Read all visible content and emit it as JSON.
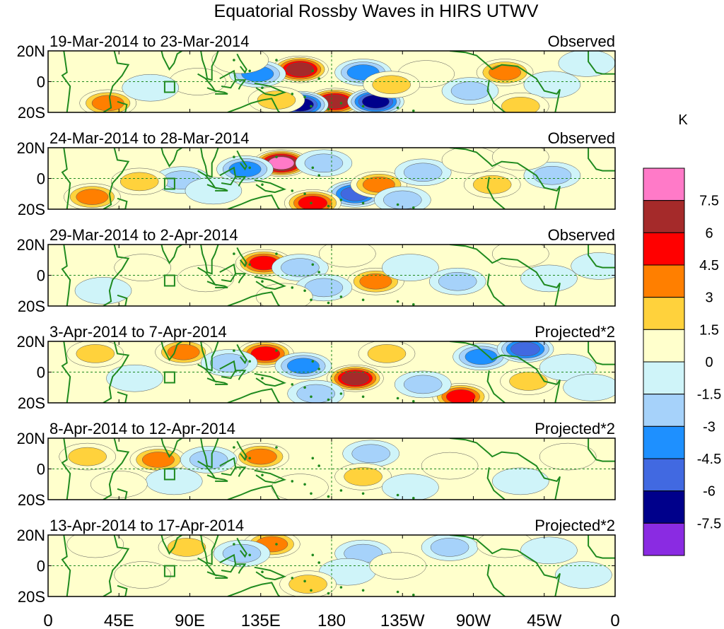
{
  "chart_data": {
    "type": "heatmap",
    "title": "Equatorial Rossby Waves in HIRS UTWV",
    "units": "K",
    "y_ticks": [
      "20N",
      "0",
      "20S"
    ],
    "x_ticks": [
      "0",
      "45E",
      "90E",
      "135E",
      "180",
      "135W",
      "90W",
      "45W",
      "0"
    ],
    "longitude_range": [
      0,
      360
    ],
    "latitude_range": [
      -20,
      20
    ],
    "colorbar": {
      "labels": [
        "7.5",
        "6",
        "4.5",
        "3",
        "1.5",
        "0",
        "-1.5",
        "-3",
        "-4.5",
        "-6",
        "-7.5"
      ],
      "colors": [
        "#ff7ac8",
        "#a52a2a",
        "#ff0000",
        "#ff7f00",
        "#ffd23c",
        "#ffffcc",
        "#cff4f9",
        "#a6d2fa",
        "#1e90ff",
        "#4169e1",
        "#00008b",
        "#8a2be2"
      ]
    },
    "panels": [
      {
        "date_range": "19-Mar-2014 to 23-Mar-2014",
        "status": "Observed",
        "anomalies": [
          {
            "lon": 160,
            "lat": 8,
            "value": 7.5
          },
          {
            "lon": 200,
            "lat": 6,
            "value": -4.5
          },
          {
            "lon": 133,
            "lat": 5,
            "value": -4
          },
          {
            "lon": 240,
            "lat": 5,
            "value": 1.5
          },
          {
            "lon": 290,
            "lat": 6,
            "value": 4.5
          },
          {
            "lon": 182,
            "lat": -13,
            "value": 7
          },
          {
            "lon": 208,
            "lat": -13,
            "value": -6.5
          },
          {
            "lon": 160,
            "lat": -15,
            "value": -6.5
          },
          {
            "lon": 218,
            "lat": -2,
            "value": 2.5
          },
          {
            "lon": 38,
            "lat": -14,
            "value": 3.5
          },
          {
            "lon": 145,
            "lat": -12,
            "value": 3
          },
          {
            "lon": 95,
            "lat": 0,
            "value": 1.5
          },
          {
            "lon": 65,
            "lat": -4,
            "value": -1.5
          },
          {
            "lon": 268,
            "lat": -6,
            "value": -2
          },
          {
            "lon": 320,
            "lat": -2,
            "value": -1.5
          },
          {
            "lon": 342,
            "lat": 12,
            "value": -1.5
          },
          {
            "lon": 300,
            "lat": -16,
            "value": 3
          },
          {
            "lon": 122,
            "lat": 14,
            "value": 1.5
          }
        ]
      },
      {
        "date_range": "24-Mar-2014 to 28-Mar-2014",
        "status": "Observed",
        "anomalies": [
          {
            "lon": 148,
            "lat": 10,
            "value": 8
          },
          {
            "lon": 125,
            "lat": 6,
            "value": -3.5
          },
          {
            "lon": 175,
            "lat": 10,
            "value": -3
          },
          {
            "lon": 195,
            "lat": -10,
            "value": -6
          },
          {
            "lon": 168,
            "lat": -16,
            "value": 5
          },
          {
            "lon": 210,
            "lat": -4,
            "value": 3.5
          },
          {
            "lon": 238,
            "lat": 4,
            "value": -2
          },
          {
            "lon": 28,
            "lat": -12,
            "value": 4
          },
          {
            "lon": 85,
            "lat": -1,
            "value": -2
          },
          {
            "lon": 58,
            "lat": -2,
            "value": 2
          },
          {
            "lon": 282,
            "lat": -4,
            "value": 2
          },
          {
            "lon": 320,
            "lat": 2,
            "value": -2
          },
          {
            "lon": 268,
            "lat": 12,
            "value": 1.5
          },
          {
            "lon": 300,
            "lat": 14,
            "value": 1.5
          },
          {
            "lon": 105,
            "lat": -8,
            "value": -1.5
          },
          {
            "lon": 225,
            "lat": -14,
            "value": -2
          }
        ]
      },
      {
        "date_range": "29-Mar-2014 to 2-Apr-2014",
        "status": "Observed",
        "anomalies": [
          {
            "lon": 137,
            "lat": 8,
            "value": 5
          },
          {
            "lon": 208,
            "lat": -4,
            "value": 4
          },
          {
            "lon": 160,
            "lat": 5,
            "value": -2
          },
          {
            "lon": 175,
            "lat": -8,
            "value": -2.5
          },
          {
            "lon": 230,
            "lat": 5,
            "value": -1.5
          },
          {
            "lon": 150,
            "lat": -14,
            "value": 1.5
          },
          {
            "lon": 35,
            "lat": -10,
            "value": -1.5
          },
          {
            "lon": 100,
            "lat": -2,
            "value": 1.5
          },
          {
            "lon": 260,
            "lat": -4,
            "value": -2
          },
          {
            "lon": 318,
            "lat": -2,
            "value": -1.5
          },
          {
            "lon": 300,
            "lat": 14,
            "value": 1.5
          },
          {
            "lon": 190,
            "lat": 14,
            "value": 1.5
          },
          {
            "lon": 350,
            "lat": 6,
            "value": -1.5
          },
          {
            "lon": 60,
            "lat": 5,
            "value": 1.5
          }
        ]
      },
      {
        "date_range": "3-Apr-2014 to 7-Apr-2014",
        "status": "Projected*2",
        "anomalies": [
          {
            "lon": 138,
            "lat": 12,
            "value": 5.5
          },
          {
            "lon": 86,
            "lat": 13,
            "value": 3.5
          },
          {
            "lon": 195,
            "lat": -4,
            "value": 6.5
          },
          {
            "lon": 162,
            "lat": 4,
            "value": -3.5
          },
          {
            "lon": 115,
            "lat": 6,
            "value": -3
          },
          {
            "lon": 275,
            "lat": 10,
            "value": -4.5
          },
          {
            "lon": 303,
            "lat": 15,
            "value": -6
          },
          {
            "lon": 262,
            "lat": -16,
            "value": 5
          },
          {
            "lon": 238,
            "lat": -8,
            "value": -3
          },
          {
            "lon": 215,
            "lat": 12,
            "value": 2.5
          },
          {
            "lon": 30,
            "lat": 12,
            "value": 3
          },
          {
            "lon": 55,
            "lat": -4,
            "value": -1.5
          },
          {
            "lon": 305,
            "lat": -6,
            "value": 2.5
          },
          {
            "lon": 330,
            "lat": 3,
            "value": -1.5
          },
          {
            "lon": 345,
            "lat": -10,
            "value": -1.5
          },
          {
            "lon": 170,
            "lat": -14,
            "value": -2
          }
        ]
      },
      {
        "date_range": "8-Apr-2014 to 12-Apr-2014",
        "status": "Projected*2",
        "anomalies": [
          {
            "lon": 70,
            "lat": 6,
            "value": 3.5
          },
          {
            "lon": 135,
            "lat": 8,
            "value": 3.5
          },
          {
            "lon": 205,
            "lat": 10,
            "value": -3
          },
          {
            "lon": 200,
            "lat": -5,
            "value": 2.5
          },
          {
            "lon": 102,
            "lat": 6,
            "value": -2.5
          },
          {
            "lon": 25,
            "lat": 8,
            "value": 2
          },
          {
            "lon": 80,
            "lat": -8,
            "value": -1.5
          },
          {
            "lon": 45,
            "lat": -10,
            "value": 1.5
          },
          {
            "lon": 255,
            "lat": 2,
            "value": 1.5
          },
          {
            "lon": 300,
            "lat": -8,
            "value": -1.5
          },
          {
            "lon": 330,
            "lat": 8,
            "value": 1.5
          },
          {
            "lon": 230,
            "lat": -12,
            "value": -1.5
          },
          {
            "lon": 160,
            "lat": -12,
            "value": 1.5
          }
        ]
      },
      {
        "date_range": "13-Apr-2014 to 17-Apr-2014",
        "status": "Projected*2",
        "anomalies": [
          {
            "lon": 142,
            "lat": 14,
            "value": 4.5
          },
          {
            "lon": 123,
            "lat": 8,
            "value": -2.5
          },
          {
            "lon": 200,
            "lat": 8,
            "value": -2
          },
          {
            "lon": 190,
            "lat": -4,
            "value": -1.5
          },
          {
            "lon": 222,
            "lat": 0,
            "value": 1.5
          },
          {
            "lon": 88,
            "lat": 12,
            "value": 2
          },
          {
            "lon": 60,
            "lat": -6,
            "value": 1.5
          },
          {
            "lon": 30,
            "lat": 14,
            "value": 1.5
          },
          {
            "lon": 255,
            "lat": 12,
            "value": -2
          },
          {
            "lon": 290,
            "lat": 14,
            "value": 1.5
          },
          {
            "lon": 318,
            "lat": 10,
            "value": -1.5
          },
          {
            "lon": 165,
            "lat": -12,
            "value": 2
          },
          {
            "lon": 340,
            "lat": -6,
            "value": -1.5
          }
        ]
      }
    ]
  }
}
